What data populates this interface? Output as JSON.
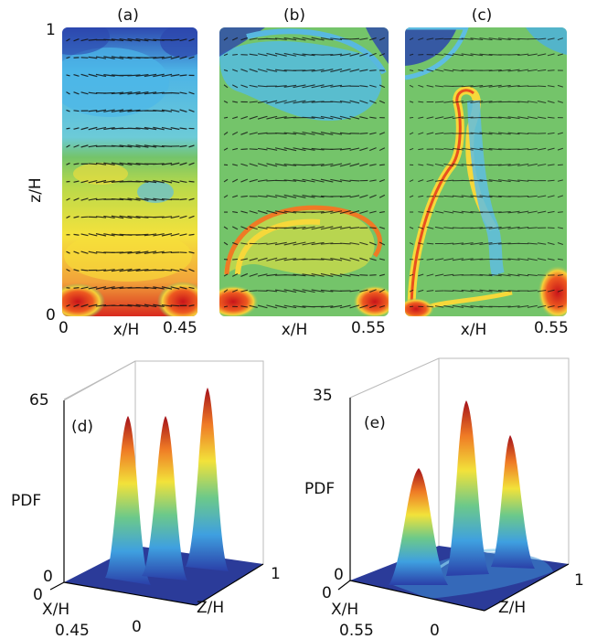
{
  "panels_top": [
    {
      "label": "(a)",
      "x_label": "x/H",
      "x_min": "0",
      "x_max": "0.45",
      "y_label": "z/H",
      "y_min": "0",
      "y_max": "1"
    },
    {
      "label": "(b)",
      "x_label": "x/H",
      "x_max": "0.55"
    },
    {
      "label": "(c)",
      "x_label": "x/H",
      "x_max": "0.55"
    }
  ],
  "panels_bottom": [
    {
      "label": "(d)",
      "z_label": "PDF",
      "z_max": "65",
      "z_min": "0",
      "x_label": "X/H",
      "x_min": "0",
      "x_max": "0.45",
      "y_label": "Z/H",
      "y_min": "0",
      "y_max": "1"
    },
    {
      "label": "(e)",
      "z_label": "PDF",
      "z_max": "35",
      "z_min": "0",
      "x_label": "X/H",
      "x_min": "0",
      "x_max": "0.55",
      "y_label": "Z/H",
      "y_min": "0",
      "y_max": "1"
    }
  ],
  "colors": {
    "low": "#2a3fa8",
    "cold": "#4fb9e8",
    "mid": "#74c46a",
    "warm": "#f2e23a",
    "hot": "#e03a1e",
    "peak": "#9a0d14"
  }
}
